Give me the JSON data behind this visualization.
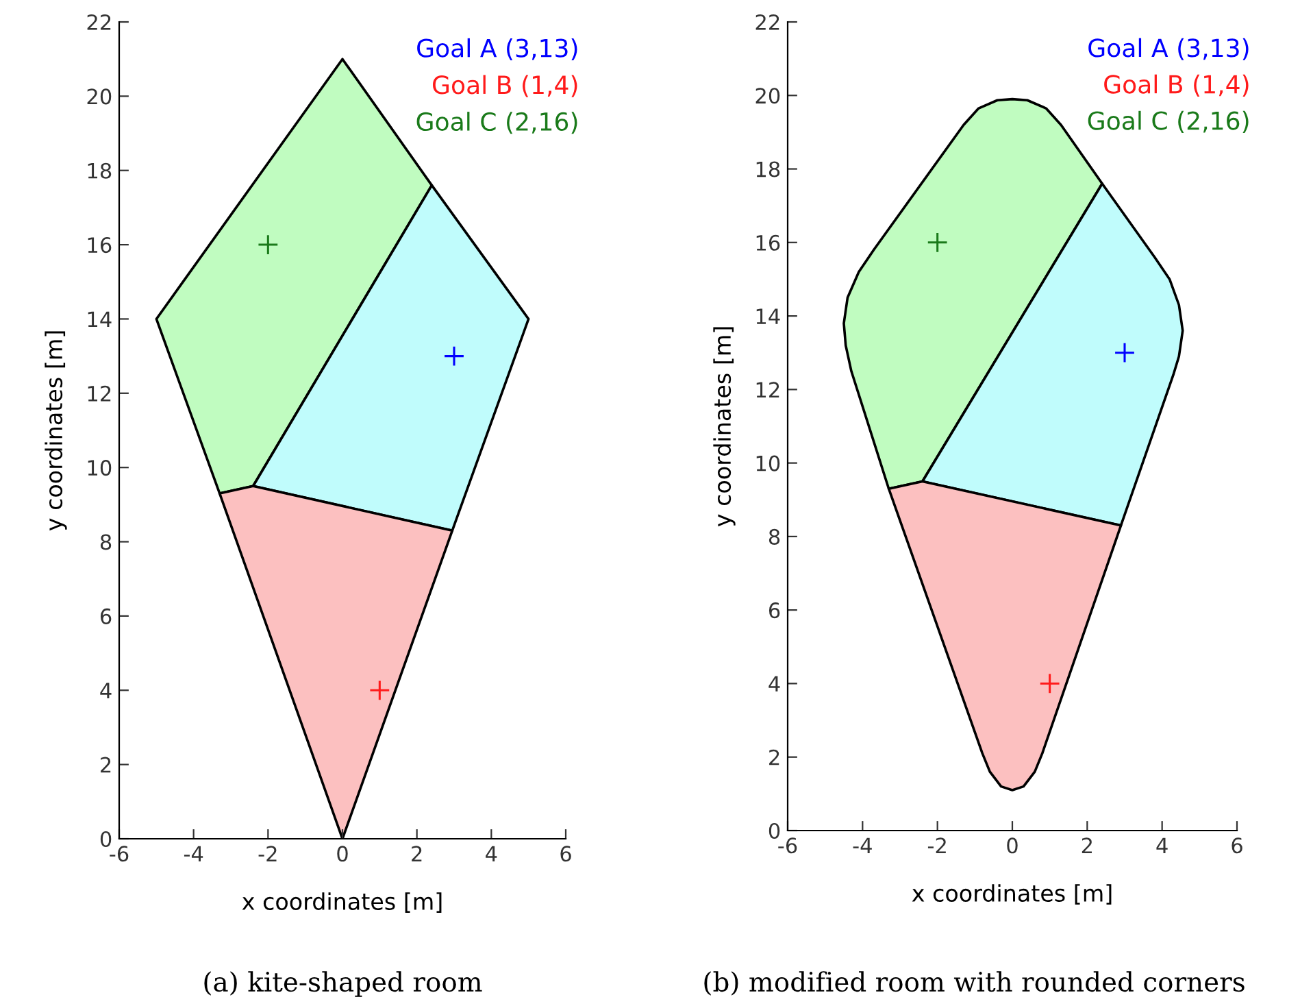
{
  "chart_data": [
    {
      "type": "area",
      "xlabel": "x coordinates [m]",
      "ylabel": "y coordinates [m]",
      "xlim": [
        -6,
        6
      ],
      "ylim": [
        0,
        22
      ],
      "xticks": [
        -6,
        -4,
        -2,
        0,
        2,
        4,
        6
      ],
      "yticks": [
        0,
        2,
        4,
        6,
        8,
        10,
        12,
        14,
        16,
        18,
        20,
        22
      ],
      "grid": false,
      "legend": "top right",
      "annotations": [
        "(a) kite-shaped room"
      ],
      "series": [
        {
          "color": "#c0fcc0",
          "x": [
            -3.3,
            -2.4,
            2.4,
            0,
            -5
          ],
          "values": [
            9.3,
            9.5,
            17.6,
            21,
            14
          ]
        },
        {
          "color": "#c0fcfc",
          "x": [
            2.4,
            5,
            2.95,
            -2.4
          ],
          "values": [
            17.6,
            14,
            8.3,
            9.5
          ]
        },
        {
          "color": "#fcc0c0",
          "x": [
            -3.3,
            -2.4,
            2.95,
            0
          ],
          "values": [
            9.3,
            9.5,
            8.3,
            0
          ]
        },
        {
          "type": "scatter",
          "marker": "cross",
          "name": "Goal A (3,13)",
          "color": "#0000ff",
          "x": [
            3
          ],
          "values": [
            13
          ]
        },
        {
          "type": "scatter",
          "marker": "cross",
          "name": "Goal B (1,4)",
          "color": "#ff1a1a",
          "x": [
            1
          ],
          "values": [
            4
          ]
        },
        {
          "type": "scatter",
          "marker": "cross",
          "name": "Goal C (2,16)",
          "color": "#1a7a1a",
          "x": [
            -2
          ],
          "values": [
            16
          ]
        }
      ]
    },
    {
      "type": "area",
      "xlabel": "x coordinates [m]",
      "ylabel": "y coordinates [m]",
      "xlim": [
        -6,
        6
      ],
      "ylim": [
        0,
        22
      ],
      "xticks": [
        -6,
        -4,
        -2,
        0,
        2,
        4,
        6
      ],
      "yticks": [
        0,
        2,
        4,
        6,
        8,
        10,
        12,
        14,
        16,
        18,
        20,
        22
      ],
      "grid": false,
      "legend": "top right",
      "annotations": [
        "(b) modified room with rounded corners"
      ],
      "series": [
        {
          "color": "#c0fcc0",
          "x": [
            -3.3,
            -2.4,
            2.4,
            1.3,
            0.9,
            0.4,
            0,
            -0.4,
            -0.9,
            -1.3,
            -3.7,
            -4.1,
            -4.4,
            -4.5,
            -4.45,
            -4.3
          ],
          "values": [
            9.3,
            9.5,
            17.6,
            19.2,
            19.65,
            19.87,
            19.9,
            19.87,
            19.65,
            19.2,
            15.8,
            15.2,
            14.5,
            13.8,
            13.2,
            12.5
          ]
        },
        {
          "color": "#c0fcfc",
          "x": [
            2.4,
            3.8,
            4.2,
            4.45,
            4.55,
            4.45,
            4.3,
            2.9,
            -2.4
          ],
          "values": [
            17.6,
            15.6,
            15.0,
            14.3,
            13.6,
            12.9,
            12.4,
            8.3,
            9.5
          ]
        },
        {
          "color": "#fcc0c0",
          "x": [
            -3.3,
            -2.4,
            2.9,
            0.8,
            0.6,
            0.3,
            0,
            -0.3,
            -0.6,
            -0.8
          ],
          "values": [
            9.3,
            9.5,
            8.3,
            2.1,
            1.6,
            1.2,
            1.1,
            1.2,
            1.6,
            2.1
          ]
        },
        {
          "type": "scatter",
          "marker": "cross",
          "name": "Goal A (3,13)",
          "color": "#0000ff",
          "x": [
            3
          ],
          "values": [
            13
          ]
        },
        {
          "type": "scatter",
          "marker": "cross",
          "name": "Goal B (1,4)",
          "color": "#ff1a1a",
          "x": [
            1
          ],
          "values": [
            4
          ]
        },
        {
          "type": "scatter",
          "marker": "cross",
          "name": "Goal C (2,16)",
          "color": "#1a7a1a",
          "x": [
            -2
          ],
          "values": [
            16
          ]
        }
      ]
    }
  ]
}
